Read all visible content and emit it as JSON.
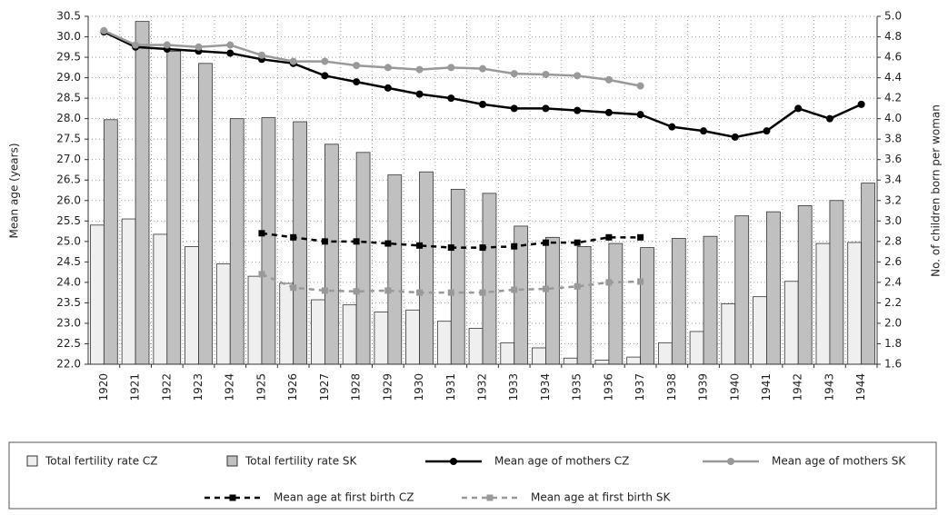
{
  "chart_data": {
    "type": "combo",
    "y_label": "Mean age (years)",
    "y2_label": "No. of children born per woman",
    "categories": [
      "1920",
      "1921",
      "1922",
      "1923",
      "1924",
      "1925",
      "1926",
      "1927",
      "1928",
      "1929",
      "1930",
      "1931",
      "1932",
      "1933",
      "1934",
      "1935",
      "1936",
      "1937",
      "1938",
      "1939",
      "1940",
      "1941",
      "1942",
      "1943",
      "1944"
    ],
    "ylim": [
      22.0,
      30.5
    ],
    "yticks": [
      {
        "value": 22,
        "label": "22.0"
      },
      22.5,
      {
        "value": 23,
        "label": "23.0"
      },
      23.5,
      {
        "value": 24,
        "label": "24.0"
      },
      24.5,
      {
        "value": 25,
        "label": "25.0"
      },
      25.5,
      {
        "value": 26,
        "label": "26.0"
      },
      26.5,
      {
        "value": 27,
        "label": "27.0"
      },
      27.5,
      {
        "value": 28,
        "label": "28.0"
      },
      28.5,
      {
        "value": 29,
        "label": "29.0"
      },
      29.5,
      {
        "value": 30,
        "label": "30.0"
      },
      30.5
    ],
    "y2lim": [
      1.6,
      5.0
    ],
    "y2ticks": [
      1.6,
      1.8,
      {
        "value": 2,
        "label": "2.0"
      },
      2.2,
      2.4,
      2.6,
      2.8,
      {
        "value": 3,
        "label": "3.0"
      },
      3.2,
      3.4,
      3.6,
      3.8,
      {
        "value": 4,
        "label": "4.0"
      },
      4.2,
      4.4,
      4.6,
      4.8,
      {
        "value": 5,
        "label": "5.0"
      }
    ],
    "grid": true,
    "series": [
      {
        "name": "Total fertility rate CZ",
        "type": "bar",
        "axis": "y2",
        "color": "#efefef",
        "values": [
          2.96,
          3.02,
          2.87,
          2.75,
          2.58,
          2.46,
          2.39,
          2.23,
          2.18,
          2.11,
          2.13,
          2.02,
          1.95,
          1.81,
          1.76,
          1.66,
          1.64,
          1.67,
          1.81,
          1.92,
          2.19,
          2.26,
          2.41,
          2.78,
          2.79
        ]
      },
      {
        "name": "Total fertility rate SK",
        "type": "bar",
        "axis": "y2",
        "color": "#c0c0c0",
        "values": [
          3.99,
          4.95,
          4.66,
          4.54,
          4.0,
          4.01,
          3.97,
          3.75,
          3.67,
          3.45,
          3.48,
          3.31,
          3.27,
          2.95,
          2.84,
          2.75,
          2.78,
          2.74,
          2.83,
          2.85,
          3.05,
          3.09,
          3.15,
          3.2,
          3.37
        ]
      },
      {
        "name": "Mean age of mothers CZ",
        "type": "line",
        "color": "#000000",
        "dash": false,
        "marker": "circle",
        "values": [
          30.12,
          29.75,
          29.7,
          29.65,
          29.6,
          29.45,
          29.35,
          29.05,
          28.9,
          28.75,
          28.6,
          28.5,
          28.35,
          28.25,
          28.25,
          28.2,
          28.15,
          28.1,
          27.8,
          27.7,
          27.55,
          27.7,
          28.25,
          28.0,
          28.35
        ]
      },
      {
        "name": "Mean age of mothers SK",
        "type": "line",
        "color": "#999999",
        "dash": false,
        "marker": "circle",
        "values": [
          30.15,
          29.8,
          29.8,
          29.75,
          29.8,
          29.55,
          29.4,
          29.4,
          29.3,
          29.25,
          29.2,
          29.25,
          29.22,
          29.1,
          29.08,
          29.05,
          28.95,
          28.8,
          null,
          null,
          null,
          null,
          null,
          null,
          null
        ]
      },
      {
        "name": "Mean age at first birth CZ",
        "type": "line",
        "color": "#000000",
        "dash": true,
        "marker": "square",
        "values": [
          null,
          null,
          null,
          null,
          null,
          25.2,
          25.1,
          25.0,
          25.0,
          24.95,
          24.9,
          24.85,
          24.85,
          24.88,
          24.97,
          24.97,
          25.1,
          25.1,
          null,
          null,
          null,
          null,
          null,
          null,
          null
        ]
      },
      {
        "name": "Mean age at first birth SK",
        "type": "line",
        "color": "#999999",
        "dash": true,
        "marker": "square",
        "values": [
          null,
          null,
          null,
          null,
          null,
          24.2,
          23.87,
          23.8,
          23.78,
          23.8,
          23.75,
          23.75,
          23.75,
          23.82,
          23.84,
          23.9,
          24.0,
          24.02,
          null,
          null,
          null,
          null,
          null,
          null,
          null
        ]
      }
    ]
  }
}
